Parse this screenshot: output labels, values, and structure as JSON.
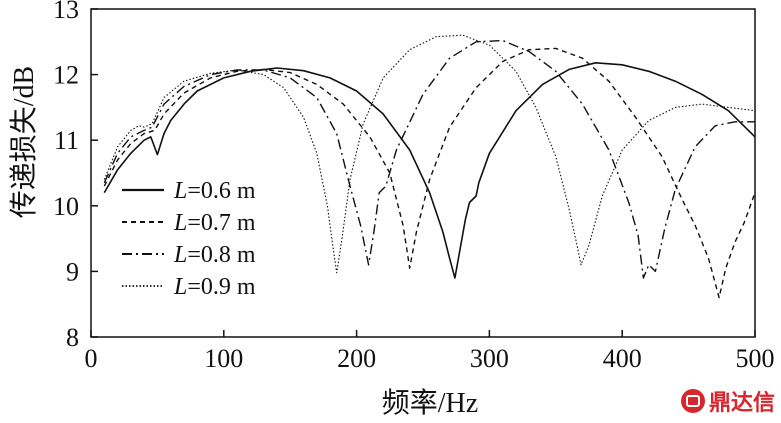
{
  "chart_data": {
    "type": "line",
    "title": "",
    "xlabel": "频率/Hz",
    "ylabel": "传递损失/dB",
    "xlim": [
      0,
      500
    ],
    "ylim": [
      8,
      13
    ],
    "x_ticks": [
      0,
      100,
      200,
      300,
      400,
      500
    ],
    "y_ticks": [
      8,
      9,
      10,
      11,
      12,
      13
    ],
    "x_tick_labels": [
      "0",
      "100",
      "200",
      "300",
      "400",
      "500"
    ],
    "y_tick_labels": [
      "8",
      "9",
      "10",
      "11",
      "12",
      "13"
    ],
    "grid": false,
    "legend_position": "left",
    "series": [
      {
        "name": "L=0.6 m",
        "name_italic": "L",
        "name_rest": "=0.6 m",
        "line_style": "solid",
        "color": "#111111",
        "points": [
          [
            10,
            10.2
          ],
          [
            20,
            10.55
          ],
          [
            30,
            10.8
          ],
          [
            40,
            11.0
          ],
          [
            45,
            11.05
          ],
          [
            50,
            10.78
          ],
          [
            55,
            11.1
          ],
          [
            60,
            11.3
          ],
          [
            70,
            11.55
          ],
          [
            80,
            11.75
          ],
          [
            100,
            11.95
          ],
          [
            120,
            12.05
          ],
          [
            140,
            12.1
          ],
          [
            160,
            12.06
          ],
          [
            180,
            11.95
          ],
          [
            200,
            11.75
          ],
          [
            220,
            11.4
          ],
          [
            240,
            10.85
          ],
          [
            255,
            10.2
          ],
          [
            265,
            9.6
          ],
          [
            270,
            9.2
          ],
          [
            274,
            8.9
          ],
          [
            278,
            9.35
          ],
          [
            282,
            9.8
          ],
          [
            285,
            10.05
          ],
          [
            290,
            10.15
          ],
          [
            292,
            10.35
          ],
          [
            300,
            10.8
          ],
          [
            320,
            11.45
          ],
          [
            340,
            11.85
          ],
          [
            360,
            12.08
          ],
          [
            380,
            12.18
          ],
          [
            400,
            12.15
          ],
          [
            420,
            12.05
          ],
          [
            440,
            11.9
          ],
          [
            460,
            11.7
          ],
          [
            480,
            11.45
          ],
          [
            500,
            11.05
          ]
        ]
      },
      {
        "name": "L=0.7 m",
        "name_italic": "L",
        "name_rest": "=0.7 m",
        "line_style": "dashed",
        "color": "#111111",
        "points": [
          [
            10,
            10.3
          ],
          [
            20,
            10.7
          ],
          [
            30,
            10.95
          ],
          [
            40,
            11.1
          ],
          [
            48,
            11.15
          ],
          [
            55,
            11.4
          ],
          [
            70,
            11.72
          ],
          [
            90,
            11.95
          ],
          [
            110,
            12.05
          ],
          [
            130,
            12.08
          ],
          [
            150,
            12.03
          ],
          [
            170,
            11.85
          ],
          [
            190,
            11.55
          ],
          [
            210,
            11.05
          ],
          [
            225,
            10.5
          ],
          [
            235,
            9.7
          ],
          [
            240,
            9.05
          ],
          [
            245,
            9.6
          ],
          [
            255,
            10.4
          ],
          [
            270,
            11.2
          ],
          [
            290,
            11.8
          ],
          [
            310,
            12.2
          ],
          [
            330,
            12.38
          ],
          [
            350,
            12.4
          ],
          [
            370,
            12.25
          ],
          [
            390,
            11.9
          ],
          [
            410,
            11.35
          ],
          [
            430,
            10.75
          ],
          [
            445,
            10.1
          ],
          [
            455,
            9.7
          ],
          [
            465,
            9.2
          ],
          [
            473,
            8.6
          ],
          [
            478,
            9.05
          ],
          [
            485,
            9.45
          ],
          [
            492,
            9.75
          ],
          [
            500,
            10.2
          ]
        ]
      },
      {
        "name": "L=0.8 m",
        "name_italic": "L",
        "name_rest": "=0.8 m",
        "line_style": "dashdot",
        "color": "#111111",
        "points": [
          [
            10,
            10.35
          ],
          [
            20,
            10.8
          ],
          [
            30,
            11.05
          ],
          [
            40,
            11.15
          ],
          [
            46,
            11.2
          ],
          [
            55,
            11.55
          ],
          [
            70,
            11.82
          ],
          [
            90,
            12.0
          ],
          [
            110,
            12.07
          ],
          [
            130,
            12.07
          ],
          [
            150,
            11.95
          ],
          [
            170,
            11.65
          ],
          [
            185,
            11.1
          ],
          [
            195,
            10.3
          ],
          [
            203,
            9.7
          ],
          [
            209,
            9.1
          ],
          [
            213,
            9.6
          ],
          [
            217,
            10.2
          ],
          [
            222,
            10.3
          ],
          [
            230,
            10.85
          ],
          [
            250,
            11.7
          ],
          [
            270,
            12.25
          ],
          [
            290,
            12.5
          ],
          [
            310,
            12.52
          ],
          [
            330,
            12.35
          ],
          [
            350,
            12.05
          ],
          [
            370,
            11.55
          ],
          [
            390,
            10.85
          ],
          [
            405,
            10.05
          ],
          [
            412,
            9.55
          ],
          [
            416,
            8.9
          ],
          [
            420,
            9.1
          ],
          [
            425,
            9.0
          ],
          [
            432,
            9.65
          ],
          [
            440,
            10.25
          ],
          [
            455,
            10.9
          ],
          [
            470,
            11.22
          ],
          [
            485,
            11.28
          ],
          [
            500,
            11.28
          ]
        ]
      },
      {
        "name": "L=0.9 m",
        "name_italic": "L",
        "name_rest": "=0.9 m",
        "line_style": "dotted",
        "color": "#111111",
        "points": [
          [
            10,
            10.4
          ],
          [
            20,
            10.9
          ],
          [
            30,
            11.15
          ],
          [
            36,
            11.22
          ],
          [
            40,
            11.2
          ],
          [
            46,
            11.25
          ],
          [
            55,
            11.65
          ],
          [
            70,
            11.9
          ],
          [
            90,
            12.02
          ],
          [
            110,
            12.07
          ],
          [
            130,
            12.0
          ],
          [
            145,
            11.8
          ],
          [
            160,
            11.35
          ],
          [
            170,
            10.8
          ],
          [
            178,
            10.0
          ],
          [
            182,
            9.4
          ],
          [
            185,
            8.98
          ],
          [
            189,
            9.5
          ],
          [
            195,
            10.4
          ],
          [
            205,
            11.25
          ],
          [
            220,
            11.95
          ],
          [
            240,
            12.38
          ],
          [
            260,
            12.58
          ],
          [
            280,
            12.6
          ],
          [
            300,
            12.45
          ],
          [
            320,
            12.05
          ],
          [
            335,
            11.5
          ],
          [
            350,
            10.75
          ],
          [
            360,
            9.95
          ],
          [
            366,
            9.4
          ],
          [
            369,
            9.1
          ],
          [
            375,
            9.4
          ],
          [
            385,
            10.15
          ],
          [
            400,
            10.85
          ],
          [
            420,
            11.3
          ],
          [
            440,
            11.5
          ],
          [
            460,
            11.55
          ],
          [
            480,
            11.5
          ],
          [
            500,
            11.45
          ]
        ]
      }
    ]
  },
  "watermark": {
    "text": "鼎达信",
    "logo_icon": "dingdaxin-logo-icon",
    "color": "#d7262e"
  }
}
